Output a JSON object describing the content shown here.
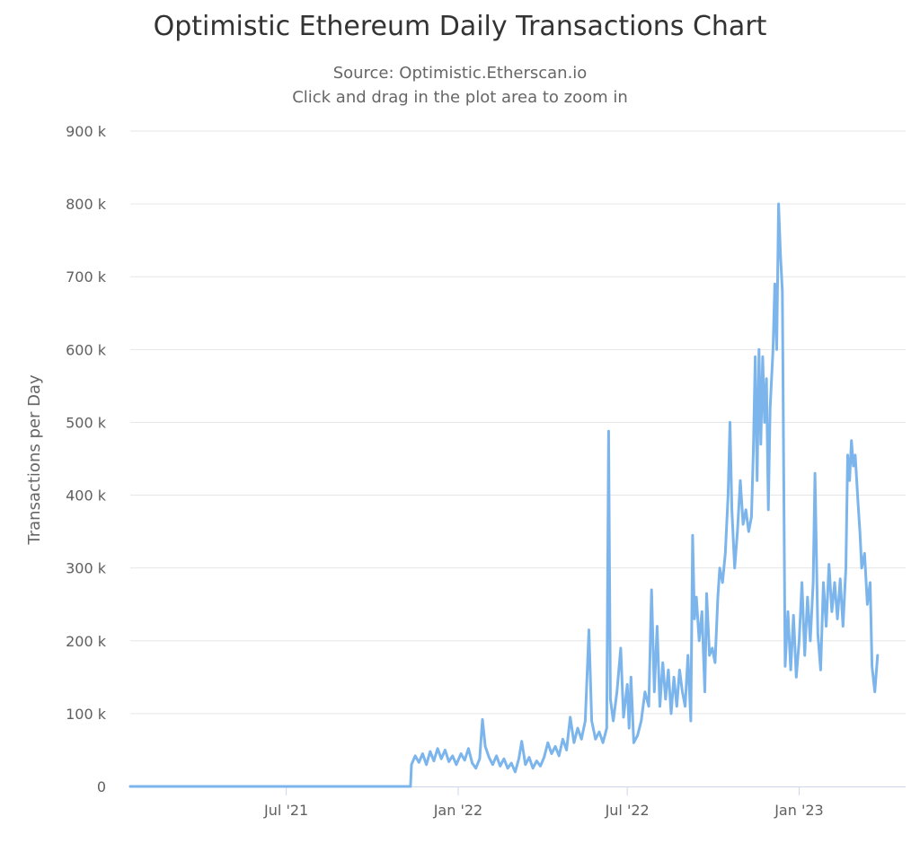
{
  "chart_data": {
    "type": "line",
    "title": "Optimistic Ethereum Daily Transactions Chart",
    "subtitle": [
      "Source: Optimistic.Etherscan.io",
      "Click and drag in the plot area to zoom in"
    ],
    "ylabel": "Transactions per Day",
    "xlabel": "",
    "ylim": [
      0,
      900000
    ],
    "xlim": [
      "2021-01-15",
      "2023-04-25"
    ],
    "y_ticks": [
      {
        "value": 0,
        "label": "0"
      },
      {
        "value": 100000,
        "label": "100 k"
      },
      {
        "value": 200000,
        "label": "200 k"
      },
      {
        "value": 300000,
        "label": "300 k"
      },
      {
        "value": 400000,
        "label": "400 k"
      },
      {
        "value": 500000,
        "label": "500 k"
      },
      {
        "value": 600000,
        "label": "600 k"
      },
      {
        "value": 700000,
        "label": "700 k"
      },
      {
        "value": 800000,
        "label": "800 k"
      },
      {
        "value": 900000,
        "label": "900 k"
      }
    ],
    "x_ticks": [
      {
        "value": "2021-07-01",
        "label": "Jul '21"
      },
      {
        "value": "2022-01-01",
        "label": "Jan '22"
      },
      {
        "value": "2022-07-01",
        "label": "Jul '22"
      },
      {
        "value": "2023-01-01",
        "label": "Jan '23"
      }
    ],
    "grid": true,
    "legend": "none",
    "colors": {
      "line": "#7cb5ec",
      "grid": "#e6e6e6",
      "axis": "#ccd6eb"
    },
    "series": [
      {
        "points": [
          [
            "2021-01-15",
            0
          ],
          [
            "2021-06-01",
            0
          ],
          [
            "2021-11-11",
            0
          ],
          [
            "2021-11-12",
            30000
          ],
          [
            "2021-11-16",
            42000
          ],
          [
            "2021-11-20",
            33000
          ],
          [
            "2021-11-24",
            45000
          ],
          [
            "2021-11-28",
            30000
          ],
          [
            "2021-12-02",
            48000
          ],
          [
            "2021-12-06",
            35000
          ],
          [
            "2021-12-10",
            52000
          ],
          [
            "2021-12-14",
            38000
          ],
          [
            "2021-12-18",
            50000
          ],
          [
            "2021-12-22",
            34000
          ],
          [
            "2021-12-26",
            42000
          ],
          [
            "2021-12-30",
            30000
          ],
          [
            "2022-01-04",
            45000
          ],
          [
            "2022-01-08",
            36000
          ],
          [
            "2022-01-12",
            52000
          ],
          [
            "2022-01-16",
            32000
          ],
          [
            "2022-01-20",
            25000
          ],
          [
            "2022-01-24",
            38000
          ],
          [
            "2022-01-27",
            92000
          ],
          [
            "2022-01-30",
            55000
          ],
          [
            "2022-02-03",
            40000
          ],
          [
            "2022-02-07",
            30000
          ],
          [
            "2022-02-11",
            42000
          ],
          [
            "2022-02-15",
            28000
          ],
          [
            "2022-02-19",
            38000
          ],
          [
            "2022-02-23",
            25000
          ],
          [
            "2022-02-27",
            32000
          ],
          [
            "2022-03-03",
            20000
          ],
          [
            "2022-03-07",
            38000
          ],
          [
            "2022-03-10",
            62000
          ],
          [
            "2022-03-14",
            30000
          ],
          [
            "2022-03-18",
            40000
          ],
          [
            "2022-03-22",
            25000
          ],
          [
            "2022-03-26",
            35000
          ],
          [
            "2022-03-30",
            28000
          ],
          [
            "2022-04-03",
            40000
          ],
          [
            "2022-04-07",
            60000
          ],
          [
            "2022-04-11",
            45000
          ],
          [
            "2022-04-15",
            55000
          ],
          [
            "2022-04-19",
            42000
          ],
          [
            "2022-04-23",
            65000
          ],
          [
            "2022-04-27",
            50000
          ],
          [
            "2022-05-01",
            95000
          ],
          [
            "2022-05-05",
            60000
          ],
          [
            "2022-05-09",
            80000
          ],
          [
            "2022-05-13",
            65000
          ],
          [
            "2022-05-17",
            90000
          ],
          [
            "2022-05-21",
            215000
          ],
          [
            "2022-05-24",
            90000
          ],
          [
            "2022-05-28",
            65000
          ],
          [
            "2022-06-01",
            75000
          ],
          [
            "2022-06-05",
            60000
          ],
          [
            "2022-06-09",
            80000
          ],
          [
            "2022-06-11",
            488000
          ],
          [
            "2022-06-13",
            120000
          ],
          [
            "2022-06-16",
            90000
          ],
          [
            "2022-06-20",
            130000
          ],
          [
            "2022-06-24",
            190000
          ],
          [
            "2022-06-27",
            95000
          ],
          [
            "2022-07-01",
            140000
          ],
          [
            "2022-07-03",
            80000
          ],
          [
            "2022-07-05",
            150000
          ],
          [
            "2022-07-08",
            60000
          ],
          [
            "2022-07-12",
            70000
          ],
          [
            "2022-07-16",
            90000
          ],
          [
            "2022-07-20",
            130000
          ],
          [
            "2022-07-24",
            110000
          ],
          [
            "2022-07-27",
            270000
          ],
          [
            "2022-07-30",
            130000
          ],
          [
            "2022-08-02",
            220000
          ],
          [
            "2022-08-05",
            110000
          ],
          [
            "2022-08-08",
            170000
          ],
          [
            "2022-08-11",
            120000
          ],
          [
            "2022-08-14",
            160000
          ],
          [
            "2022-08-17",
            100000
          ],
          [
            "2022-08-20",
            150000
          ],
          [
            "2022-08-23",
            110000
          ],
          [
            "2022-08-26",
            160000
          ],
          [
            "2022-08-29",
            130000
          ],
          [
            "2022-09-01",
            110000
          ],
          [
            "2022-09-04",
            180000
          ],
          [
            "2022-09-07",
            90000
          ],
          [
            "2022-09-09",
            345000
          ],
          [
            "2022-09-11",
            230000
          ],
          [
            "2022-09-13",
            260000
          ],
          [
            "2022-09-16",
            200000
          ],
          [
            "2022-09-19",
            240000
          ],
          [
            "2022-09-22",
            130000
          ],
          [
            "2022-09-24",
            265000
          ],
          [
            "2022-09-27",
            180000
          ],
          [
            "2022-09-30",
            190000
          ],
          [
            "2022-10-03",
            170000
          ],
          [
            "2022-10-06",
            260000
          ],
          [
            "2022-10-08",
            300000
          ],
          [
            "2022-10-11",
            280000
          ],
          [
            "2022-10-14",
            320000
          ],
          [
            "2022-10-17",
            400000
          ],
          [
            "2022-10-19",
            500000
          ],
          [
            "2022-10-21",
            380000
          ],
          [
            "2022-10-24",
            300000
          ],
          [
            "2022-10-27",
            350000
          ],
          [
            "2022-10-30",
            420000
          ],
          [
            "2022-11-02",
            360000
          ],
          [
            "2022-11-05",
            380000
          ],
          [
            "2022-11-08",
            350000
          ],
          [
            "2022-11-11",
            370000
          ],
          [
            "2022-11-13",
            460000
          ],
          [
            "2022-11-15",
            590000
          ],
          [
            "2022-11-17",
            420000
          ],
          [
            "2022-11-19",
            600000
          ],
          [
            "2022-11-21",
            470000
          ],
          [
            "2022-11-23",
            590000
          ],
          [
            "2022-11-25",
            500000
          ],
          [
            "2022-11-27",
            560000
          ],
          [
            "2022-11-29",
            380000
          ],
          [
            "2022-12-01",
            520000
          ],
          [
            "2022-12-04",
            600000
          ],
          [
            "2022-12-06",
            690000
          ],
          [
            "2022-12-08",
            600000
          ],
          [
            "2022-12-10",
            800000
          ],
          [
            "2022-12-12",
            730000
          ],
          [
            "2022-12-14",
            680000
          ],
          [
            "2022-12-17",
            165000
          ],
          [
            "2022-12-20",
            240000
          ],
          [
            "2022-12-23",
            160000
          ],
          [
            "2022-12-26",
            235000
          ],
          [
            "2022-12-29",
            150000
          ],
          [
            "2023-01-01",
            200000
          ],
          [
            "2023-01-04",
            280000
          ],
          [
            "2023-01-07",
            180000
          ],
          [
            "2023-01-10",
            260000
          ],
          [
            "2023-01-13",
            200000
          ],
          [
            "2023-01-16",
            280000
          ],
          [
            "2023-01-18",
            430000
          ],
          [
            "2023-01-21",
            210000
          ],
          [
            "2023-01-24",
            160000
          ],
          [
            "2023-01-27",
            280000
          ],
          [
            "2023-01-30",
            220000
          ],
          [
            "2023-02-02",
            305000
          ],
          [
            "2023-02-05",
            240000
          ],
          [
            "2023-02-08",
            280000
          ],
          [
            "2023-02-11",
            230000
          ],
          [
            "2023-02-14",
            285000
          ],
          [
            "2023-02-17",
            220000
          ],
          [
            "2023-02-20",
            300000
          ],
          [
            "2023-02-22",
            455000
          ],
          [
            "2023-02-24",
            420000
          ],
          [
            "2023-02-26",
            475000
          ],
          [
            "2023-02-28",
            440000
          ],
          [
            "2023-03-02",
            455000
          ],
          [
            "2023-03-05",
            390000
          ],
          [
            "2023-03-07",
            350000
          ],
          [
            "2023-03-09",
            300000
          ],
          [
            "2023-03-12",
            320000
          ],
          [
            "2023-03-15",
            250000
          ],
          [
            "2023-03-18",
            280000
          ],
          [
            "2023-03-20",
            165000
          ],
          [
            "2023-03-23",
            130000
          ],
          [
            "2023-03-26",
            180000
          ]
        ]
      }
    ]
  }
}
